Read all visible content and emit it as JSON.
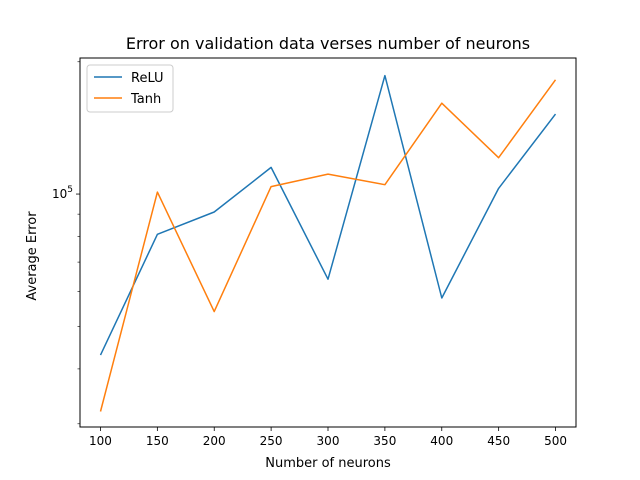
{
  "chart_data": {
    "type": "line",
    "title": "Error on validation data verses number of neurons",
    "xlabel": "Number of neurons",
    "ylabel": "Average Error",
    "x": [
      100,
      150,
      200,
      250,
      300,
      350,
      400,
      450,
      500
    ],
    "xticks": [
      "100",
      "150",
      "200",
      "250",
      "300",
      "350",
      "400",
      "450",
      "500"
    ],
    "xlim": [
      82,
      518
    ],
    "yscale": "log",
    "ylim": [
      29500,
      204000
    ],
    "yticks": [
      {
        "value": 100000,
        "label": "10^5"
      }
    ],
    "legend_position": "upper-left",
    "grid": false,
    "series": [
      {
        "name": "ReLU",
        "color": "#1f77b4",
        "values": [
          43000,
          81000,
          91000,
          115000,
          64000,
          186000,
          58000,
          103000,
          152000
        ]
      },
      {
        "name": "Tanh",
        "color": "#ff7f0e",
        "values": [
          32000,
          101000,
          54000,
          104000,
          111000,
          105000,
          161000,
          121000,
          182000
        ]
      }
    ]
  }
}
